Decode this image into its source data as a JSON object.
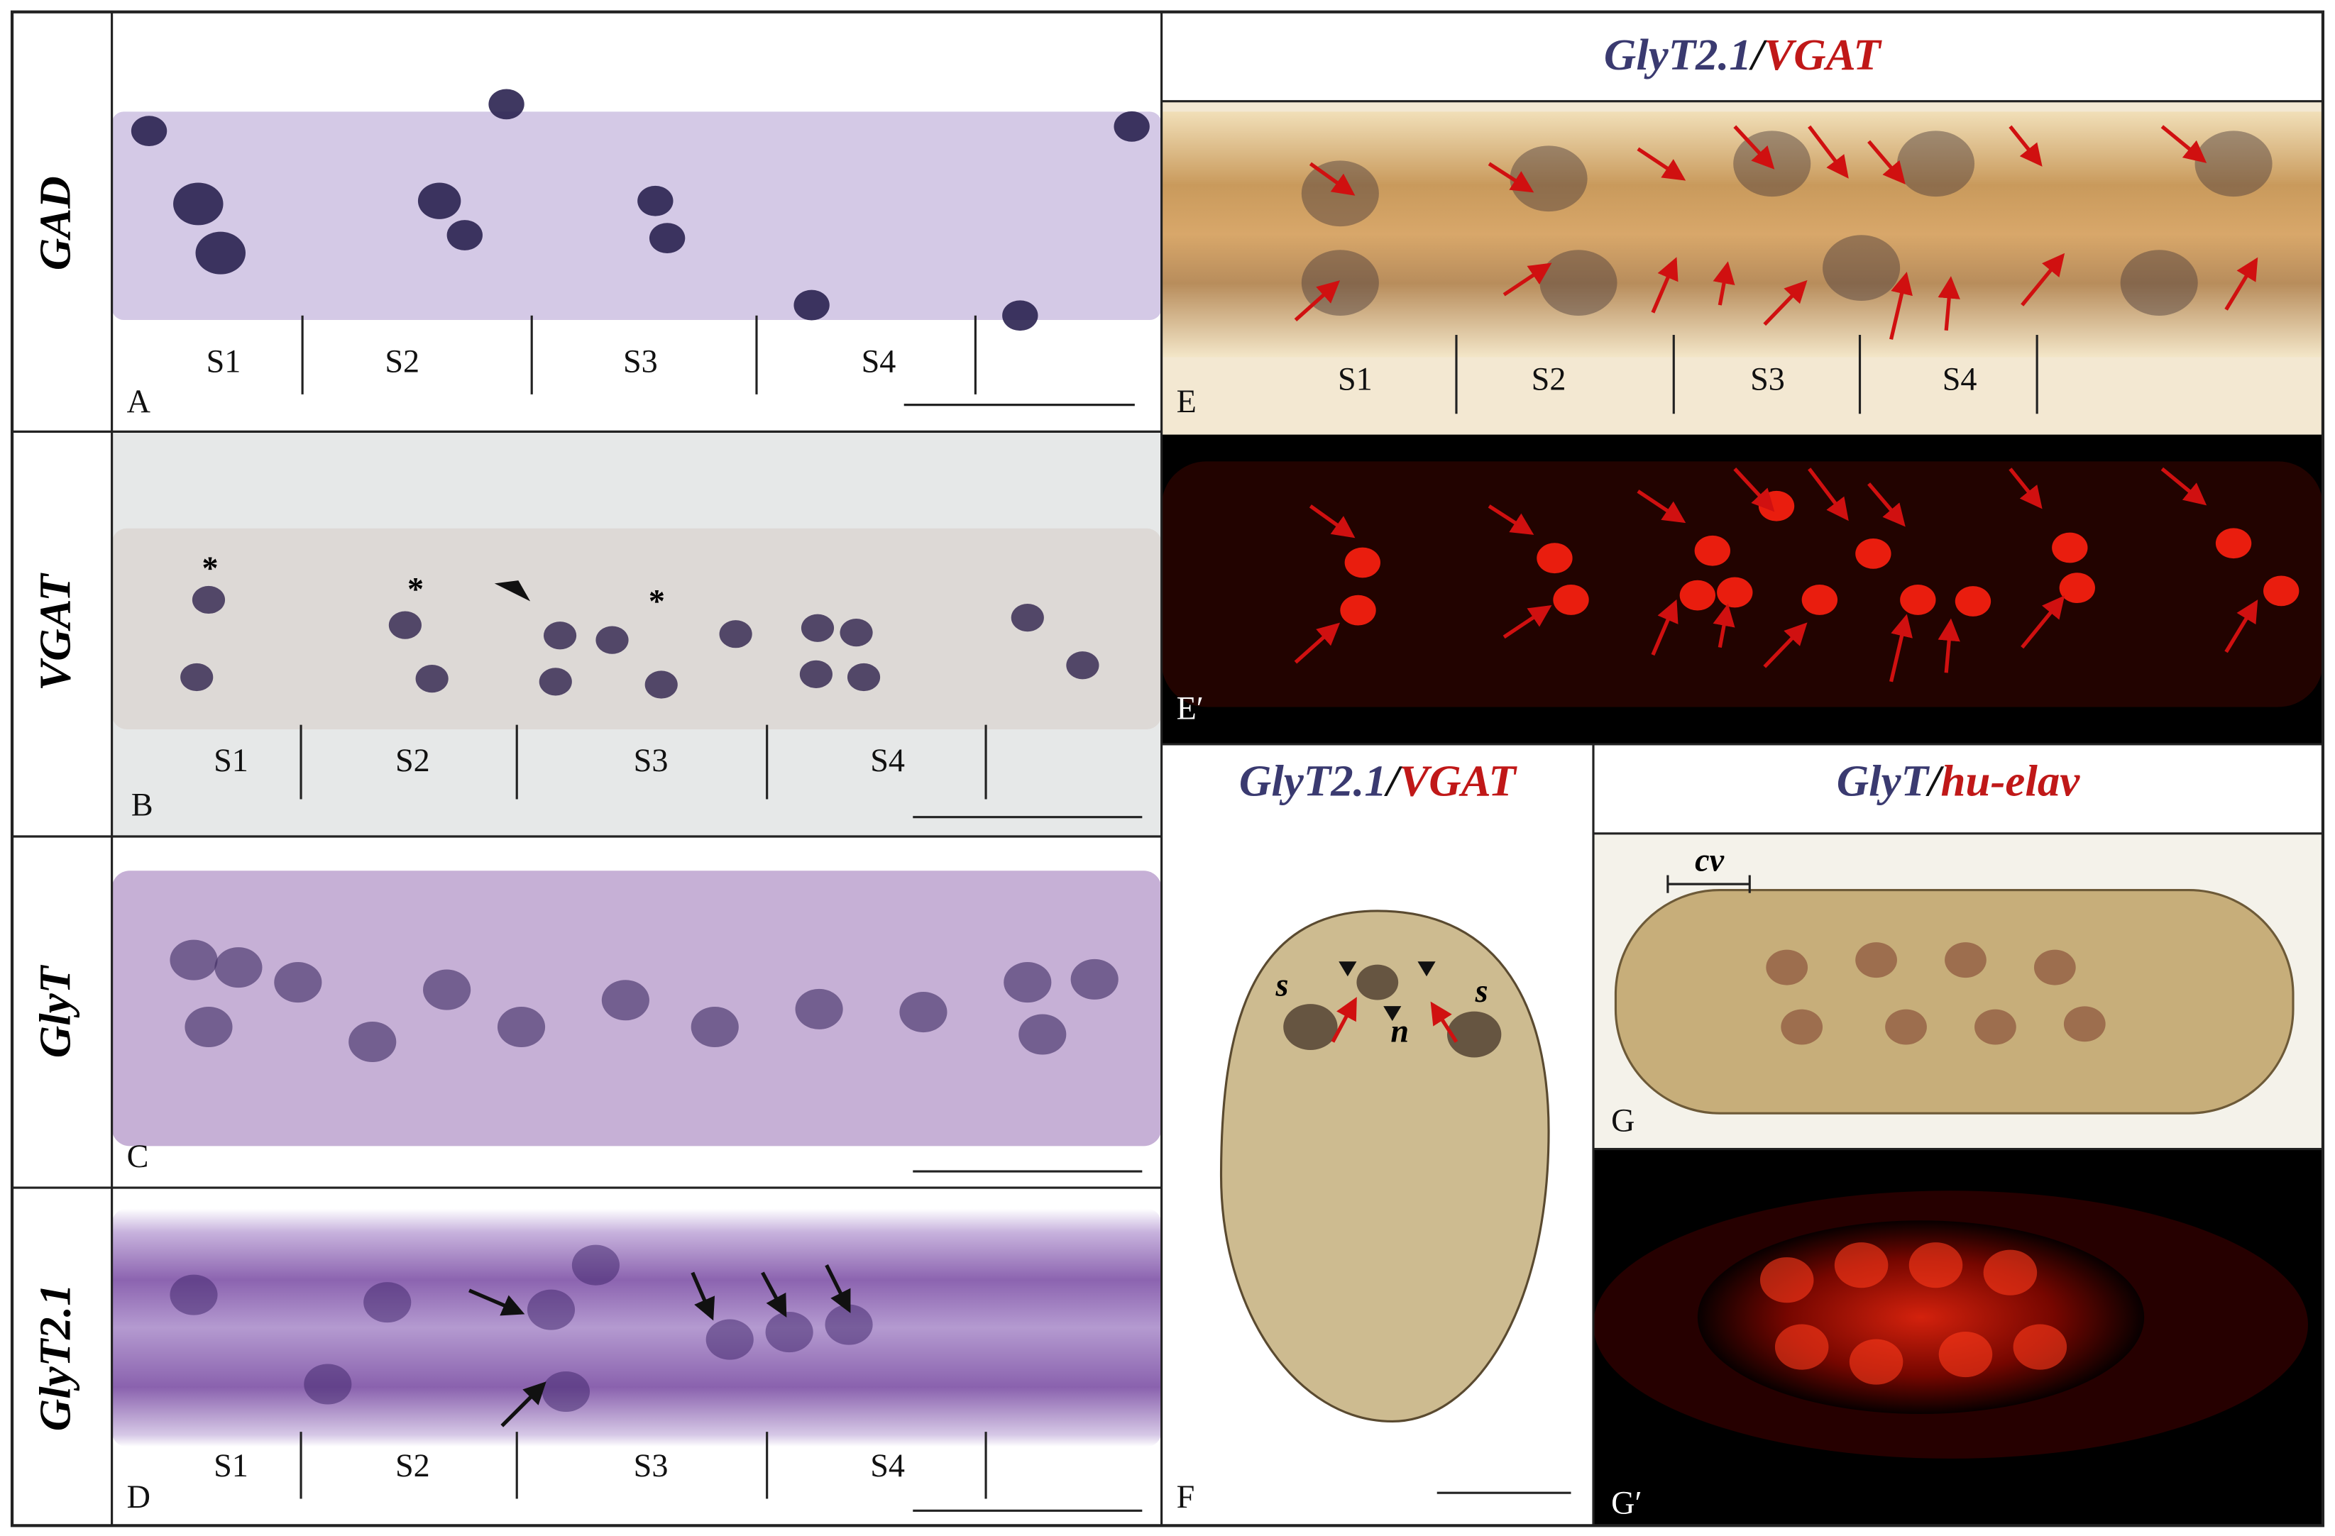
{
  "row_labels": [
    "GAD",
    "VGAT",
    "GlyT",
    "GlyT2.1"
  ],
  "panels": {
    "A": {
      "letter": "A",
      "segments": [
        "S1",
        "S2",
        "S3",
        "S4"
      ]
    },
    "B": {
      "letter": "B",
      "segments": [
        "S1",
        "S2",
        "S3",
        "S4"
      ],
      "markers": [
        "*",
        "*",
        "*"
      ]
    },
    "C": {
      "letter": "C"
    },
    "D": {
      "letter": "D",
      "segments": [
        "S1",
        "S2",
        "S3",
        "S4"
      ]
    },
    "E": {
      "letter": "E",
      "segments": [
        "S1",
        "S2",
        "S3",
        "S4"
      ],
      "title": {
        "probe1": "GlyT2.1",
        "separator": "/",
        "probe2": "VGAT"
      }
    },
    "E_prime": {
      "letter": "E′"
    },
    "F": {
      "letter": "F",
      "title": {
        "probe1": "GlyT2.1",
        "separator": "/",
        "probe2": "VGAT"
      },
      "labels": [
        "s",
        "n",
        "s"
      ]
    },
    "G": {
      "letter": "G",
      "title": {
        "probe1": "GlyT",
        "separator": "/",
        "probe2": "hu-elav"
      },
      "labels": [
        "cv"
      ]
    },
    "G_prime": {
      "letter": "G′"
    }
  }
}
